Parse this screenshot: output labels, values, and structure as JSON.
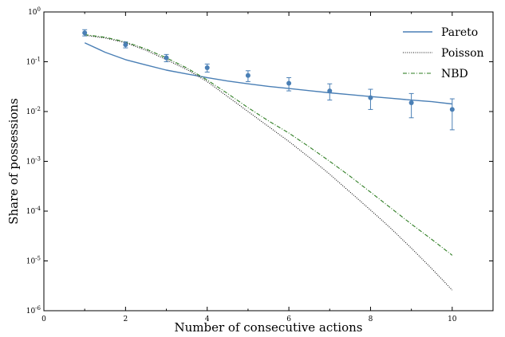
{
  "chart_data": {
    "type": "line",
    "xlabel": "Number of consecutive actions",
    "ylabel": "Share of possessions",
    "xlim": [
      0,
      11
    ],
    "ylim": [
      1e-06,
      1
    ],
    "yscale": "log",
    "x_ticks": [
      0,
      2,
      4,
      6,
      8,
      10
    ],
    "y_ticks": [
      {
        "value": 1e-06,
        "base": "10",
        "exp": "-6"
      },
      {
        "value": 1e-05,
        "base": "10",
        "exp": "-5"
      },
      {
        "value": 0.0001,
        "base": "10",
        "exp": "-4"
      },
      {
        "value": 0.001,
        "base": "10",
        "exp": "-3"
      },
      {
        "value": 0.01,
        "base": "10",
        "exp": "-2"
      },
      {
        "value": 0.1,
        "base": "10",
        "exp": "-1"
      },
      {
        "value": 1,
        "base": "10",
        "exp": "0"
      }
    ],
    "legend_position": "top-right",
    "grid": false,
    "empirical": {
      "color": "#4a7fb5",
      "x": [
        1,
        2,
        3,
        4,
        5,
        6,
        7,
        8,
        9,
        10
      ],
      "y": [
        0.38,
        0.22,
        0.12,
        0.076,
        0.053,
        0.037,
        0.026,
        0.019,
        0.015,
        0.011
      ],
      "err_low": [
        0.33,
        0.19,
        0.1,
        0.062,
        0.04,
        0.026,
        0.017,
        0.011,
        0.0075,
        0.0043
      ],
      "err_high": [
        0.44,
        0.25,
        0.14,
        0.09,
        0.066,
        0.048,
        0.036,
        0.028,
        0.023,
        0.018
      ]
    },
    "series": [
      {
        "name": "Pareto",
        "color": "#4a7fb5",
        "style": "solid",
        "x": [
          1,
          1.5,
          2,
          2.5,
          3,
          3.5,
          4,
          4.5,
          5,
          5.5,
          6,
          6.5,
          7,
          7.5,
          8,
          8.5,
          9,
          9.5,
          10
        ],
        "y": [
          0.24,
          0.155,
          0.11,
          0.086,
          0.068,
          0.057,
          0.048,
          0.041,
          0.036,
          0.032,
          0.029,
          0.0263,
          0.0238,
          0.0218,
          0.02,
          0.0185,
          0.017,
          0.0158,
          0.0142
        ]
      },
      {
        "name": "Poisson",
        "color": "#111111",
        "style": "dotted",
        "x": [
          1,
          1.5,
          2,
          2.5,
          3,
          3.5,
          4,
          4.5,
          5,
          5.5,
          6,
          6.5,
          7,
          7.5,
          8,
          8.5,
          9,
          9.5,
          10
        ],
        "y": [
          0.34,
          0.3,
          0.24,
          0.17,
          0.11,
          0.07,
          0.04,
          0.02,
          0.01,
          0.005,
          0.0025,
          0.0012,
          0.00055,
          0.00024,
          0.000105,
          4.5e-05,
          1.8e-05,
          7e-06,
          2.6e-06
        ]
      },
      {
        "name": "NBD",
        "color": "#2e7d22",
        "style": "dashdot",
        "x": [
          1,
          1.5,
          2,
          2.5,
          3,
          3.5,
          4,
          4.5,
          5,
          5.5,
          6,
          6.5,
          7,
          7.5,
          8,
          8.5,
          9,
          9.5,
          10
        ],
        "y": [
          0.35,
          0.31,
          0.25,
          0.18,
          0.12,
          0.075,
          0.043,
          0.023,
          0.012,
          0.0065,
          0.0037,
          0.00195,
          0.001,
          0.0005,
          0.00024,
          0.000115,
          5.5e-05,
          2.7e-05,
          1.3e-05
        ]
      }
    ]
  }
}
